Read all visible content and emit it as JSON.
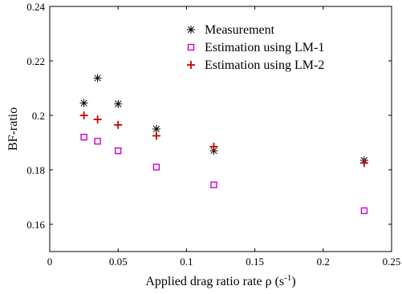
{
  "chart_data": {
    "type": "scatter",
    "xlabel": "Applied drag ratio rate ρ (s",
    "xlabel_sup": "-1",
    "xlabel_tail": ")",
    "ylabel": "BF-ratio",
    "xlim": [
      0,
      0.25
    ],
    "ylim": [
      0.15,
      0.24
    ],
    "x_ticks": [
      0,
      0.05,
      0.1,
      0.15,
      0.2,
      0.25
    ],
    "x_tick_labels": [
      "0",
      "0.05",
      "0.1",
      "0.15",
      "0.2",
      "0.25"
    ],
    "y_ticks": [
      0.16,
      0.18,
      0.2,
      0.22,
      0.24
    ],
    "y_tick_labels": [
      "0.16",
      "0.18",
      "0.2",
      "0.22",
      "0.24"
    ],
    "grid": false,
    "legend_position": "top-right",
    "series": [
      {
        "name": "Measurement",
        "marker": "asterisk",
        "color": "#000000",
        "points": [
          {
            "x": 0.025,
            "y": 0.2045
          },
          {
            "x": 0.035,
            "y": 0.2137
          },
          {
            "x": 0.05,
            "y": 0.2042
          },
          {
            "x": 0.078,
            "y": 0.195
          },
          {
            "x": 0.12,
            "y": 0.187
          },
          {
            "x": 0.23,
            "y": 0.1835
          }
        ]
      },
      {
        "name": "Estimation using LM-1",
        "marker": "square",
        "color": "#cc00cc",
        "points": [
          {
            "x": 0.025,
            "y": 0.192
          },
          {
            "x": 0.035,
            "y": 0.1905
          },
          {
            "x": 0.05,
            "y": 0.187
          },
          {
            "x": 0.078,
            "y": 0.181
          },
          {
            "x": 0.12,
            "y": 0.1745
          },
          {
            "x": 0.23,
            "y": 0.165
          }
        ]
      },
      {
        "name": "Estimation using LM-2",
        "marker": "plus",
        "color": "#cc0000",
        "points": [
          {
            "x": 0.025,
            "y": 0.2
          },
          {
            "x": 0.035,
            "y": 0.1985
          },
          {
            "x": 0.05,
            "y": 0.1965
          },
          {
            "x": 0.078,
            "y": 0.1925
          },
          {
            "x": 0.12,
            "y": 0.1885
          },
          {
            "x": 0.23,
            "y": 0.1825
          }
        ]
      }
    ]
  }
}
